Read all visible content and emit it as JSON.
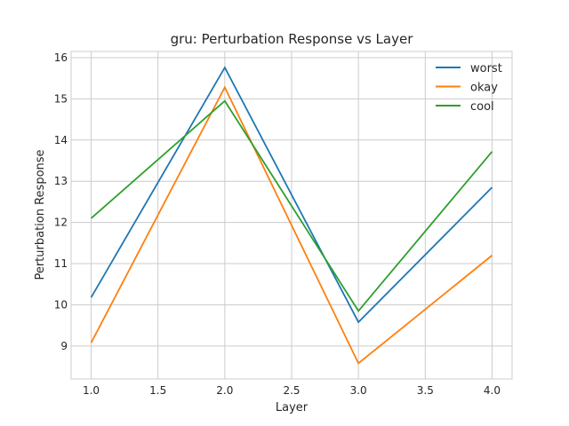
{
  "chart_data": {
    "type": "line",
    "title": "gru: Perturbation Response vs Layer",
    "xlabel": "Layer",
    "ylabel": "Perturbation Response",
    "x": [
      1.0,
      2.0,
      3.0,
      4.0
    ],
    "xlim": [
      0.85,
      4.15
    ],
    "ylim": [
      8.2,
      16.15
    ],
    "xticks": [
      "1.0",
      "1.5",
      "2.0",
      "2.5",
      "3.0",
      "3.5",
      "4.0"
    ],
    "yticks": [
      "9",
      "10",
      "11",
      "12",
      "13",
      "14",
      "15",
      "16"
    ],
    "grid": true,
    "legend_position": "top-right",
    "series": [
      {
        "name": "worst",
        "color": "#1f77b4",
        "values": [
          10.18,
          15.76,
          9.58,
          12.85
        ]
      },
      {
        "name": "okay",
        "color": "#ff7f0e",
        "values": [
          9.08,
          15.28,
          8.58,
          11.2
        ]
      },
      {
        "name": "cool",
        "color": "#2ca02c",
        "values": [
          12.1,
          14.95,
          9.85,
          13.72
        ]
      }
    ]
  }
}
